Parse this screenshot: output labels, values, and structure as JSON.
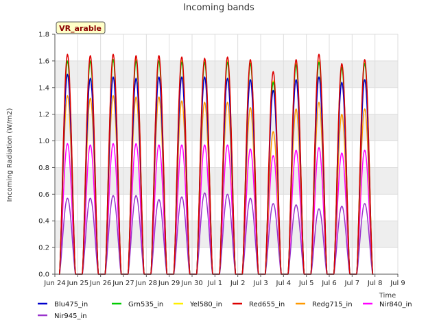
{
  "chart_data": {
    "type": "line",
    "title": "Incoming bands",
    "xlabel": "Time",
    "ylabel": "Incoming Radiation (W/m2)",
    "site_label": "VR_arable",
    "ylim": [
      0.0,
      1.8
    ],
    "yticks": [
      "0.0",
      "0.2",
      "0.4",
      "0.6",
      "0.8",
      "1.0",
      "1.2",
      "1.4",
      "1.6",
      "1.8"
    ],
    "xlim": [
      "2024-06-24",
      "2024-07-09"
    ],
    "xticks": [
      "Jun 24",
      "Jun 25",
      "Jun 26",
      "Jun 27",
      "Jun 28",
      "Jun 29",
      "Jun 30",
      "Jul 1",
      "Jul 2",
      "Jul 3",
      "Jul 4",
      "Jul 5",
      "Jul 6",
      "Jul 7",
      "Jul 8",
      "Jul 9"
    ],
    "grid": true,
    "legend_position": "bottom",
    "days": [
      "2024-06-24",
      "2024-06-25",
      "2024-06-26",
      "2024-06-27",
      "2024-06-28",
      "2024-06-29",
      "2024-06-30",
      "2024-07-01",
      "2024-07-02",
      "2024-07-03",
      "2024-07-04",
      "2024-07-05",
      "2024-07-06",
      "2024-07-07"
    ],
    "series": [
      {
        "name": "Blu475_in",
        "color": "#0000cc",
        "daily_peaks": [
          1.5,
          1.47,
          1.48,
          1.47,
          1.48,
          1.48,
          1.48,
          1.47,
          1.46,
          1.38,
          1.46,
          1.48,
          1.44,
          1.46
        ]
      },
      {
        "name": "Grn535_in",
        "color": "#00cc00",
        "daily_peaks": [
          1.6,
          1.6,
          1.61,
          1.6,
          1.6,
          1.59,
          1.59,
          1.59,
          1.58,
          1.44,
          1.57,
          1.59,
          1.55,
          1.58
        ]
      },
      {
        "name": "Yel580_in",
        "color": "#ffee00",
        "daily_peaks": [
          1.6,
          1.6,
          1.61,
          1.61,
          1.6,
          1.6,
          1.6,
          1.6,
          1.59,
          1.45,
          1.58,
          1.6,
          1.56,
          1.59
        ]
      },
      {
        "name": "Red655_in",
        "color": "#dd0000",
        "daily_peaks": [
          1.65,
          1.64,
          1.65,
          1.64,
          1.64,
          1.63,
          1.62,
          1.63,
          1.61,
          1.52,
          1.61,
          1.65,
          1.58,
          1.61
        ]
      },
      {
        "name": "Redg715_in",
        "color": "#ff9900",
        "daily_peaks": [
          1.34,
          1.32,
          1.34,
          1.33,
          1.33,
          1.3,
          1.29,
          1.29,
          1.25,
          1.07,
          1.24,
          1.29,
          1.2,
          1.24
        ]
      },
      {
        "name": "Nir840_in",
        "color": "#ff00ff",
        "daily_peaks": [
          0.98,
          0.97,
          0.98,
          0.98,
          0.97,
          0.97,
          0.97,
          0.97,
          0.94,
          0.89,
          0.93,
          0.95,
          0.91,
          0.93
        ]
      },
      {
        "name": "Nir945_in",
        "color": "#9933cc",
        "daily_peaks": [
          0.57,
          0.57,
          0.59,
          0.59,
          0.56,
          0.58,
          0.61,
          0.6,
          0.57,
          0.53,
          0.52,
          0.49,
          0.51,
          0.53
        ]
      }
    ]
  }
}
